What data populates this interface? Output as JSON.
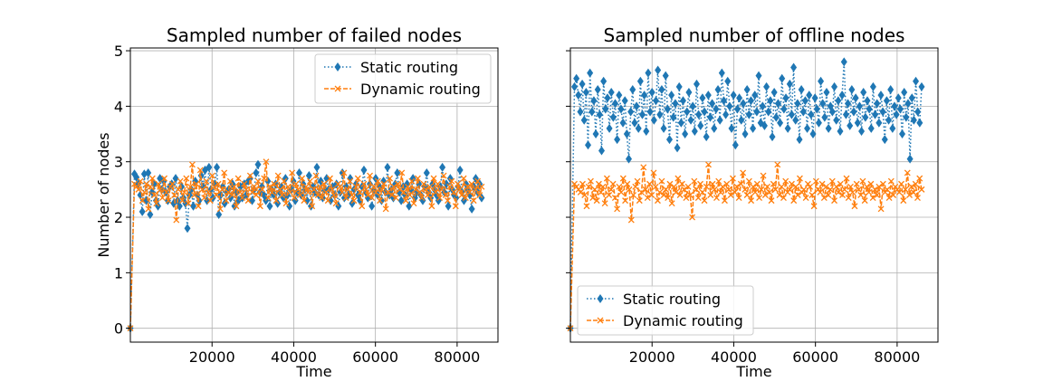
{
  "chart_data": [
    {
      "type": "line",
      "title": "Sampled number of failed nodes",
      "xlabel": "Time",
      "ylabel": "Number of nodes",
      "xlim": [
        0,
        90000
      ],
      "ylim": [
        -0.25,
        5.05
      ],
      "xticks": [
        20000,
        40000,
        60000,
        80000
      ],
      "yticks": [
        0,
        1,
        2,
        3,
        4,
        5
      ],
      "grid": true,
      "legend_position": "top-right",
      "series": [
        {
          "name": "Static routing",
          "color": "#1f77b4",
          "marker": "diamond",
          "linestyle": "dotted",
          "values": [
            0,
            2.78,
            2.72,
            2.6,
            2.4,
            2.1,
            2.78,
            2.3,
            2.8,
            2.05,
            2.45,
            2.6,
            2.3,
            2.2,
            2.7,
            2.5,
            2.65,
            2.45,
            2.3,
            2.55,
            2.6,
            2.25,
            2.7,
            2.3,
            2.2,
            2.55,
            2.35,
            2.25,
            1.8,
            2.4,
            2.5,
            2.2,
            2.65,
            2.4,
            2.3,
            2.75,
            2.55,
            2.85,
            2.3,
            2.9,
            2.5,
            2.35,
            2.6,
            2.9,
            2.05,
            2.4,
            2.55,
            2.25,
            2.45,
            2.5,
            2.35,
            2.6,
            2.2,
            2.45,
            2.3,
            2.55,
            2.35,
            2.6,
            2.4,
            2.65,
            2.7,
            2.3,
            2.5,
            2.8,
            2.95,
            2.45,
            2.55,
            2.4,
            2.3,
            2.65,
            2.2,
            2.5,
            2.4,
            2.6,
            2.25,
            2.45,
            2.55,
            2.35,
            2.7,
            2.4,
            2.2,
            2.5,
            2.65,
            2.3,
            2.45,
            2.8,
            2.4,
            2.6,
            2.5,
            2.3,
            2.75,
            2.2,
            2.55,
            2.45,
            2.9,
            2.4,
            2.65,
            2.35,
            2.5,
            2.7,
            2.5,
            2.3,
            2.55,
            2.4,
            2.6,
            2.2,
            2.45,
            2.8,
            2.35,
            2.55,
            2.4,
            2.7,
            2.25,
            2.5,
            2.6,
            2.4,
            2.3,
            2.55,
            2.85,
            2.45,
            2.35,
            2.6,
            2.2,
            2.5,
            2.7,
            2.4,
            2.55,
            2.3,
            2.65,
            2.45,
            2.9,
            2.4,
            2.5,
            2.35,
            2.6,
            2.8,
            2.45,
            2.3,
            2.55,
            2.4,
            2.6,
            2.2,
            2.5,
            2.7,
            2.35,
            2.45,
            2.6,
            2.4,
            2.3,
            2.55,
            2.8,
            2.45,
            2.35,
            2.6,
            2.5,
            2.4,
            2.3,
            2.55,
            2.9,
            2.45,
            2.6,
            2.2,
            2.7,
            2.5,
            2.4,
            2.35,
            2.55,
            2.85,
            2.45,
            2.3,
            2.6,
            2.5,
            2.4,
            2.15,
            2.55,
            2.7,
            2.45,
            2.6,
            2.35
          ]
        },
        {
          "name": "Dynamic routing",
          "color": "#ff7f0e",
          "marker": "x",
          "linestyle": "dashed",
          "values": [
            0,
            2.6,
            2.55,
            2.5,
            2.65,
            2.3,
            2.45,
            2.6,
            2.15,
            2.55,
            2.7,
            2.4,
            2.25,
            2.6,
            2.5,
            2.35,
            2.7,
            2.45,
            2.3,
            2.55,
            2.6,
            2.4,
            1.95,
            2.5,
            2.65,
            2.3,
            2.45,
            2.7,
            2.25,
            2.55,
            2.95,
            2.4,
            2.6,
            2.2,
            2.85,
            2.5,
            2.35,
            2.65,
            2.45,
            2.3,
            2.75,
            2.55,
            2.4,
            2.6,
            2.15,
            2.5,
            2.8,
            2.3,
            2.45,
            2.65,
            2.4,
            2.55,
            2.2,
            2.7,
            2.45,
            2.35,
            2.6,
            2.5,
            2.3,
            2.75,
            2.45,
            2.55,
            2.4,
            2.65,
            2.2,
            2.5,
            2.7,
            3.0,
            2.35,
            2.55,
            2.45,
            2.6,
            2.3,
            2.75,
            2.5,
            2.4,
            2.65,
            2.25,
            2.55,
            2.45,
            2.8,
            2.35,
            2.6,
            2.5,
            2.4,
            2.7,
            2.3,
            2.55,
            2.45,
            2.65,
            2.2,
            2.5,
            2.75,
            2.4,
            2.55,
            2.35,
            2.6,
            2.45,
            2.3,
            2.7,
            2.5,
            2.4,
            2.25,
            2.6,
            2.55,
            2.45,
            2.8,
            2.35,
            2.5,
            2.65,
            2.4,
            2.3,
            2.55,
            2.7,
            2.45,
            2.2,
            2.6,
            2.5,
            2.4,
            2.75,
            2.35,
            2.55,
            2.45,
            2.65,
            2.3,
            2.5,
            2.6,
            2.15,
            2.45,
            2.7,
            2.4,
            2.55,
            2.35,
            2.6,
            2.5,
            2.8,
            2.45,
            2.3,
            2.55,
            2.4,
            2.65,
            2.25,
            2.5,
            2.7,
            2.45,
            2.35,
            2.6,
            2.5,
            2.4,
            2.55,
            2.2,
            2.7,
            2.45,
            2.6,
            2.35,
            2.5,
            2.75,
            2.4,
            2.3,
            2.55,
            2.65,
            2.45,
            2.2,
            2.6,
            2.5,
            2.4,
            2.7,
            2.35,
            2.55,
            2.45,
            2.6,
            2.3,
            2.5,
            2.65,
            2.4,
            2.55
          ]
        }
      ]
    },
    {
      "type": "line",
      "title": "Sampled number of offline nodes",
      "xlabel": "Time",
      "ylabel": "",
      "xlim": [
        0,
        90000
      ],
      "ylim": [
        -0.25,
        5.05
      ],
      "xticks": [
        20000,
        40000,
        60000,
        80000
      ],
      "yticks": [
        0,
        1,
        2,
        3,
        4,
        5
      ],
      "grid": true,
      "legend_position": "bottom-left",
      "series": [
        {
          "name": "Static routing",
          "color": "#1f77b4",
          "marker": "diamond",
          "linestyle": "dotted",
          "values": [
            0,
            4.35,
            4.5,
            4.2,
            3.9,
            4.4,
            3.75,
            4.25,
            3.3,
            4.6,
            3.9,
            4.1,
            3.5,
            4.3,
            3.85,
            3.2,
            4.45,
            3.95,
            4.15,
            3.6,
            4.25,
            3.8,
            4.05,
            3.4,
            4.2,
            3.95,
            3.7,
            4.1,
            3.5,
            3.05,
            3.9,
            4.3,
            3.7,
            4.0,
            3.6,
            4.45,
            3.85,
            4.2,
            3.55,
            4.6,
            3.9,
            4.25,
            3.75,
            4.1,
            4.65,
            3.85,
            4.3,
            3.6,
            4.55,
            3.95,
            3.4,
            4.2,
            3.8,
            4.05,
            3.25,
            4.35,
            3.7,
            4.1,
            3.5,
            3.9,
            4.25,
            3.75,
            4.0,
            3.55,
            4.4,
            3.85,
            3.65,
            4.15,
            3.9,
            3.45,
            4.2,
            3.8,
            4.05,
            3.6,
            3.95,
            4.3,
            3.75,
            4.6,
            4.1,
            3.85,
            4.45,
            4.0,
            3.6,
            4.2,
            3.3,
            3.95,
            4.15,
            3.75,
            4.05,
            3.5,
            4.3,
            3.85,
            4.1,
            3.6,
            4.2,
            3.9,
            4.55,
            3.7,
            4.0,
            3.65,
            4.35,
            3.9,
            4.1,
            3.45,
            4.25,
            3.8,
            4.05,
            3.7,
            4.5,
            3.95,
            4.15,
            3.6,
            4.4,
            3.85,
            4.7,
            3.75,
            4.05,
            3.4,
            4.3,
            3.9,
            4.1,
            3.6,
            4.2,
            3.85,
            3.5,
            4.15,
            3.95,
            3.7,
            4.45,
            4.05,
            3.8,
            4.25,
            3.6,
            4.0,
            3.9,
            4.35,
            3.75,
            4.1,
            3.55,
            4.2,
            4.8,
            3.85,
            4.05,
            3.65,
            4.3,
            3.9,
            4.15,
            3.7,
            4.0,
            3.55,
            4.25,
            3.8,
            4.1,
            3.95,
            3.6,
            4.35,
            3.85,
            4.05,
            3.7,
            4.2,
            3.9,
            3.4,
            4.1,
            3.75,
            4.3,
            3.6,
            4.0,
            3.85,
            4.15,
            3.95,
            3.5,
            4.25,
            3.8,
            4.05,
            3.05,
            4.15,
            3.75,
            4.45,
            3.9,
            3.7,
            4.35
          ]
        },
        {
          "name": "Dynamic routing",
          "color": "#ff7f0e",
          "marker": "x",
          "linestyle": "dashed",
          "values": [
            0,
            2.6,
            2.55,
            2.5,
            2.45,
            2.6,
            2.4,
            2.2,
            2.55,
            2.65,
            2.35,
            2.5,
            2.3,
            2.6,
            2.45,
            2.55,
            2.25,
            2.7,
            2.4,
            2.5,
            2.6,
            2.35,
            2.15,
            2.55,
            2.45,
            2.7,
            2.3,
            2.6,
            2.5,
            1.95,
            2.4,
            2.55,
            2.65,
            2.3,
            2.45,
            2.9,
            2.5,
            2.35,
            2.6,
            2.4,
            2.8,
            2.55,
            2.3,
            2.45,
            2.65,
            2.4,
            2.5,
            2.35,
            2.6,
            2.25,
            2.55,
            2.45,
            2.7,
            2.4,
            2.6,
            2.5,
            2.35,
            2.55,
            2.4,
            2.0,
            2.65,
            2.5,
            2.35,
            2.6,
            2.45,
            2.3,
            2.55,
            2.95,
            2.4,
            2.6,
            2.5,
            2.35,
            2.65,
            2.45,
            2.55,
            2.3,
            2.6,
            2.5,
            2.4,
            2.7,
            2.45,
            2.55,
            2.35,
            2.6,
            2.8,
            2.5,
            2.4,
            2.65,
            2.3,
            2.55,
            2.45,
            2.6,
            2.35,
            2.5,
            2.75,
            2.4,
            2.55,
            2.45,
            2.3,
            2.6,
            2.5,
            2.95,
            2.4,
            2.55,
            2.35,
            2.65,
            2.45,
            2.5,
            2.6,
            2.3,
            2.55,
            2.4,
            2.7,
            2.45,
            2.5,
            2.35,
            2.6,
            2.55,
            2.4,
            2.2,
            2.65,
            2.5,
            2.45,
            2.6,
            2.35,
            2.55,
            2.4,
            2.5,
            2.65,
            2.3,
            2.55,
            2.45,
            2.6,
            2.4,
            2.5,
            2.7,
            2.35,
            2.55,
            2.45,
            2.2,
            2.6,
            2.5,
            2.4,
            2.65,
            2.3,
            2.55,
            2.45,
            2.6,
            2.35,
            2.5,
            2.4,
            2.55,
            2.15,
            2.6,
            2.45,
            2.5,
            2.35,
            2.65,
            2.4,
            2.55,
            2.5,
            2.45,
            2.6,
            2.3,
            2.5,
            2.8,
            2.4,
            2.55,
            2.45,
            2.6,
            2.35,
            2.7,
            2.5
          ]
        }
      ]
    }
  ]
}
